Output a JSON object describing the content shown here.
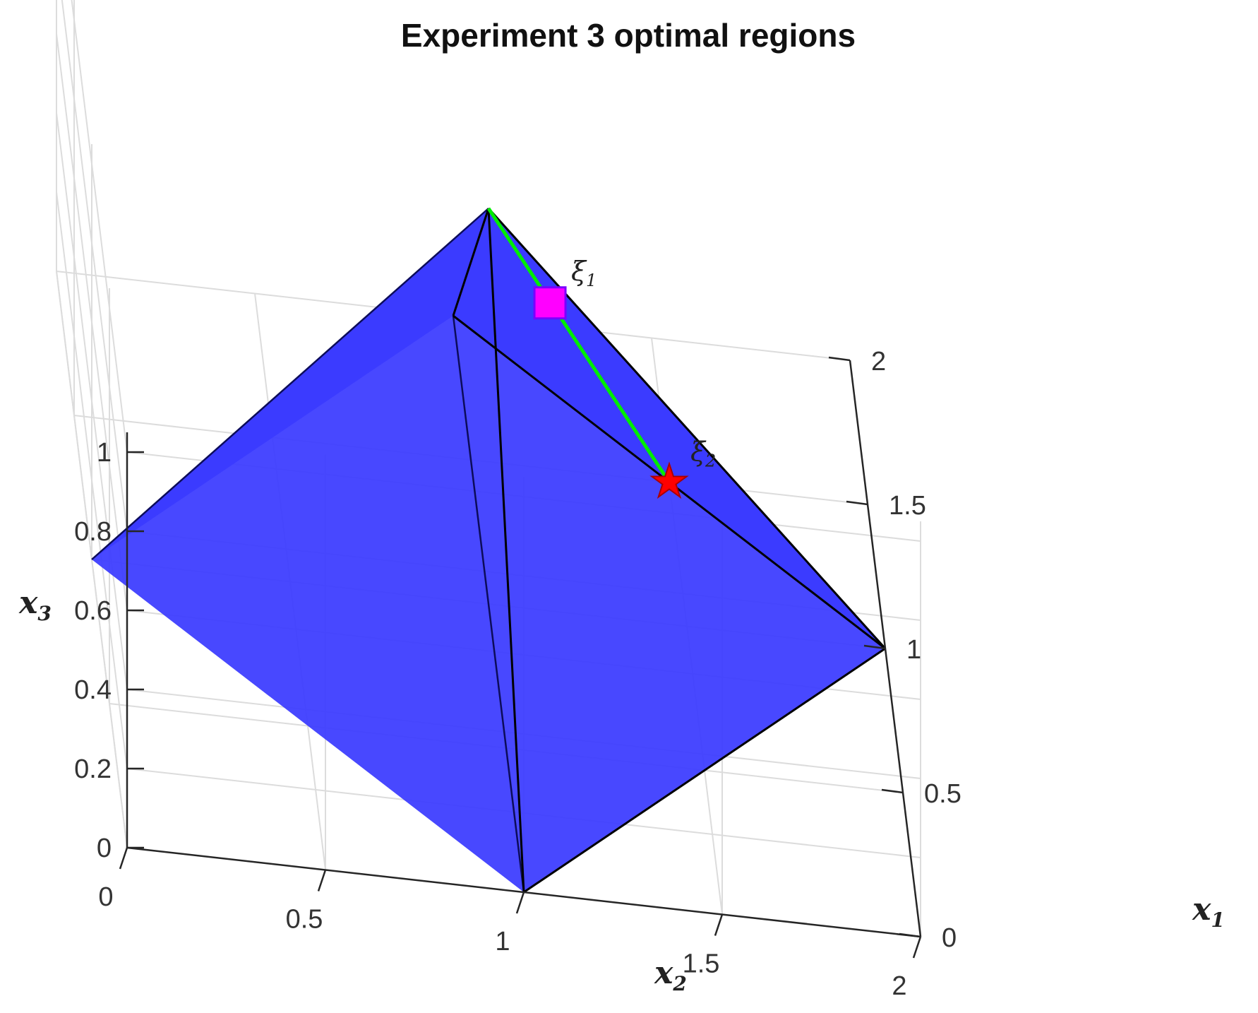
{
  "chart_data": {
    "type": "surface3d",
    "title": "Experiment 3 optimal regions",
    "axes": {
      "x1": {
        "label": "x",
        "sub": "1",
        "ticks": [
          "0",
          "0.5",
          "1",
          "1.5",
          "2"
        ],
        "range": [
          0,
          2
        ]
      },
      "x2": {
        "label": "x",
        "sub": "2",
        "ticks": [
          "0",
          "0.5",
          "1",
          "1.5",
          "2"
        ],
        "range": [
          0,
          2
        ]
      },
      "x3": {
        "label": "x",
        "sub": "3",
        "ticks": [
          "0",
          "0.2",
          "0.4",
          "0.6",
          "0.8",
          "1"
        ],
        "range": [
          0,
          1
        ]
      }
    },
    "grid": true,
    "pyramid": {
      "color": "#3a3aff",
      "base": [
        [
          1,
          0,
          0
        ],
        [
          2,
          1,
          0
        ],
        [
          1,
          2,
          0
        ],
        [
          0,
          1,
          0
        ]
      ],
      "apex": [
        1,
        1,
        1
      ]
    },
    "segment": {
      "color": "#00ee00",
      "from": [
        1,
        1,
        1
      ],
      "to": [
        1.5,
        1.5,
        0
      ]
    },
    "points": [
      {
        "label": "ξ",
        "sub": "1",
        "coords": [
          1.17,
          1.17,
          0.66
        ],
        "marker": "square",
        "color": "#ff00ff"
      },
      {
        "label": "ξ",
        "sub": "2",
        "coords": [
          1.5,
          1.5,
          0
        ],
        "marker": "star",
        "color": "#ff0000"
      }
    ]
  }
}
